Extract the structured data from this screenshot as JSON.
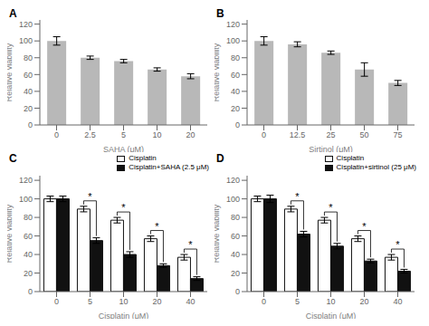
{
  "chart_data": [
    {
      "type": "bar",
      "title": "A",
      "xlabel": "SAHA (μM)",
      "ylabel": "Relative viability",
      "categories": [
        "0",
        "2.5",
        "5",
        "10",
        "20"
      ],
      "series": [
        {
          "color": "#b8b8b8",
          "values": [
            100,
            80,
            76,
            66,
            58
          ],
          "errors": [
            5,
            2,
            2,
            2,
            3
          ]
        }
      ],
      "ylim": [
        0,
        125
      ],
      "yticks": [
        0,
        20,
        40,
        60,
        80,
        100,
        120
      ],
      "grid": false
    },
    {
      "type": "bar",
      "title": "B",
      "xlabel": "Sirtinol (μM)",
      "ylabel": "Relative viability",
      "categories": [
        "0",
        "12.5",
        "25",
        "50",
        "75"
      ],
      "series": [
        {
          "color": "#b8b8b8",
          "values": [
            100,
            96,
            86,
            66,
            50
          ],
          "errors": [
            5,
            3,
            2,
            8,
            3
          ]
        }
      ],
      "ylim": [
        0,
        125
      ],
      "yticks": [
        0,
        20,
        40,
        60,
        80,
        100,
        120
      ],
      "grid": false
    },
    {
      "type": "bar",
      "title": "C",
      "xlabel": "Cisplatin (μM)",
      "ylabel": "Relative viability",
      "categories": [
        "0",
        "5",
        "10",
        "20",
        "40"
      ],
      "series": [
        {
          "name": "Cisplatin",
          "color": "#ffffff",
          "values": [
            100,
            89,
            77,
            57,
            37
          ],
          "errors": [
            3,
            3,
            3,
            3,
            3
          ]
        },
        {
          "name": "Cisplatin+SAHA (2.5 μM)",
          "color": "#111111",
          "values": [
            100,
            55,
            40,
            28,
            14
          ],
          "errors": [
            3,
            3,
            3,
            2,
            2
          ]
        }
      ],
      "ylim": [
        0,
        125
      ],
      "yticks": [
        0,
        20,
        40,
        60,
        80,
        100,
        120
      ],
      "grid": false,
      "legend": "upper right",
      "annotations": [
        {
          "text": "*",
          "category": "5"
        },
        {
          "text": "*",
          "category": "10"
        },
        {
          "text": "*",
          "category": "20"
        },
        {
          "text": "*",
          "category": "40"
        }
      ]
    },
    {
      "type": "bar",
      "title": "D",
      "xlabel": "Cisplatin (μM)",
      "ylabel": "Relative viability",
      "categories": [
        "0",
        "5",
        "10",
        "20",
        "40"
      ],
      "series": [
        {
          "name": "Cisplatin",
          "color": "#ffffff",
          "values": [
            100,
            89,
            77,
            57,
            37
          ],
          "errors": [
            3,
            3,
            3,
            3,
            3
          ]
        },
        {
          "name": "Cisplatin+sirtinol (25 μM)",
          "color": "#111111",
          "values": [
            100,
            62,
            49,
            33,
            22
          ],
          "errors": [
            4,
            3,
            3,
            2,
            2
          ]
        }
      ],
      "ylim": [
        0,
        125
      ],
      "yticks": [
        0,
        20,
        40,
        60,
        80,
        100,
        120
      ],
      "grid": false,
      "legend": "upper right",
      "annotations": [
        {
          "text": "*",
          "category": "5"
        },
        {
          "text": "*",
          "category": "10"
        },
        {
          "text": "*",
          "category": "20"
        },
        {
          "text": "*",
          "category": "40"
        }
      ]
    }
  ]
}
